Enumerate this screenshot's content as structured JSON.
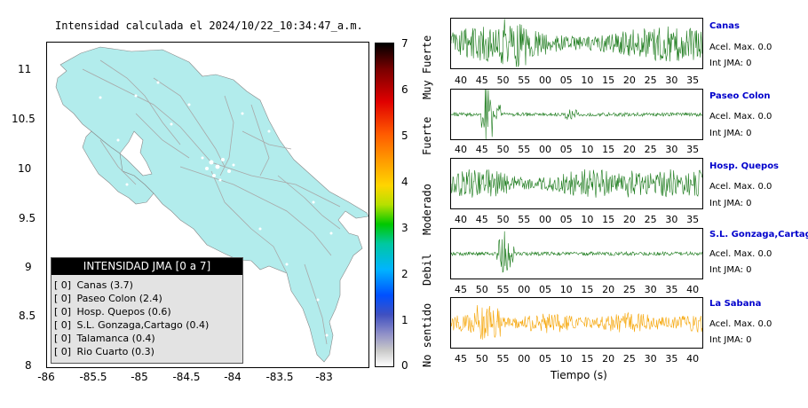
{
  "map": {
    "title": "Intensidad calculada el 2024/10/22_10:34:47_a.m.",
    "lat_ticks": [
      "11",
      "10.5",
      "10",
      "9.5",
      "9",
      "8.5",
      "8"
    ],
    "lon_ticks": [
      "-86",
      "-85.5",
      "-85",
      "-84.5",
      "-84",
      "-83.5",
      "-83"
    ],
    "land_color": "#b2ecec",
    "legend": {
      "header": "INTENSIDAD JMA [0 a 7]",
      "items": [
        {
          "flag": "[ 0]",
          "label": "Canas (3.7)"
        },
        {
          "flag": "[ 0]",
          "label": "Paseo Colon (2.4)"
        },
        {
          "flag": "[ 0]",
          "label": "Hosp. Quepos (0.6)"
        },
        {
          "flag": "[ 0]",
          "label": "S.L. Gonzaga,Cartago (0.4)"
        },
        {
          "flag": "[ 0]",
          "label": "Talamanca (0.4)"
        },
        {
          "flag": "[ 0]",
          "label": "Rio Cuarto (0.3)"
        }
      ]
    }
  },
  "colorbar": {
    "ticks": [
      "7",
      "6",
      "5",
      "4",
      "3",
      "2",
      "1",
      "0"
    ],
    "labels": [
      "Muy Fuerte",
      "Fuerte",
      "Moderado",
      "Debil",
      "No sentido"
    ]
  },
  "stations": [
    {
      "name": "Canas",
      "accel": "Acel. Max. 0.0",
      "jma": "Int JMA: 0",
      "color": "#1a7a1a",
      "ticks": [
        "40",
        "45",
        "50",
        "55",
        "00",
        "05",
        "10",
        "15",
        "20",
        "25",
        "30",
        "35"
      ]
    },
    {
      "name": "Paseo Colon",
      "accel": "Acel. Max. 0.0",
      "jma": "Int JMA: 0",
      "color": "#1a7a1a",
      "ticks": [
        "40",
        "45",
        "50",
        "55",
        "00",
        "05",
        "10",
        "15",
        "20",
        "25",
        "30",
        "35"
      ]
    },
    {
      "name": "Hosp. Quepos",
      "accel": "Acel. Max. 0.0",
      "jma": "Int JMA: 0",
      "color": "#1a7a1a",
      "ticks": [
        "40",
        "45",
        "50",
        "55",
        "00",
        "05",
        "10",
        "15",
        "20",
        "25",
        "30",
        "35"
      ]
    },
    {
      "name": "S.L. Gonzaga,Cartago",
      "accel": "Acel. Max. 0.0",
      "jma": "Int JMA: 0",
      "color": "#1a7a1a",
      "ticks": [
        "45",
        "50",
        "55",
        "00",
        "05",
        "10",
        "15",
        "20",
        "25",
        "30",
        "35",
        "40"
      ]
    },
    {
      "name": "La Sabana",
      "accel": "Acel. Max. 0.0",
      "jma": "Int JMA: 0",
      "color": "#f5a300",
      "ticks": [
        "45",
        "50",
        "55",
        "00",
        "05",
        "10",
        "15",
        "20",
        "25",
        "30",
        "35",
        "40"
      ]
    }
  ],
  "time_axis_label": "Tiempo (s)"
}
